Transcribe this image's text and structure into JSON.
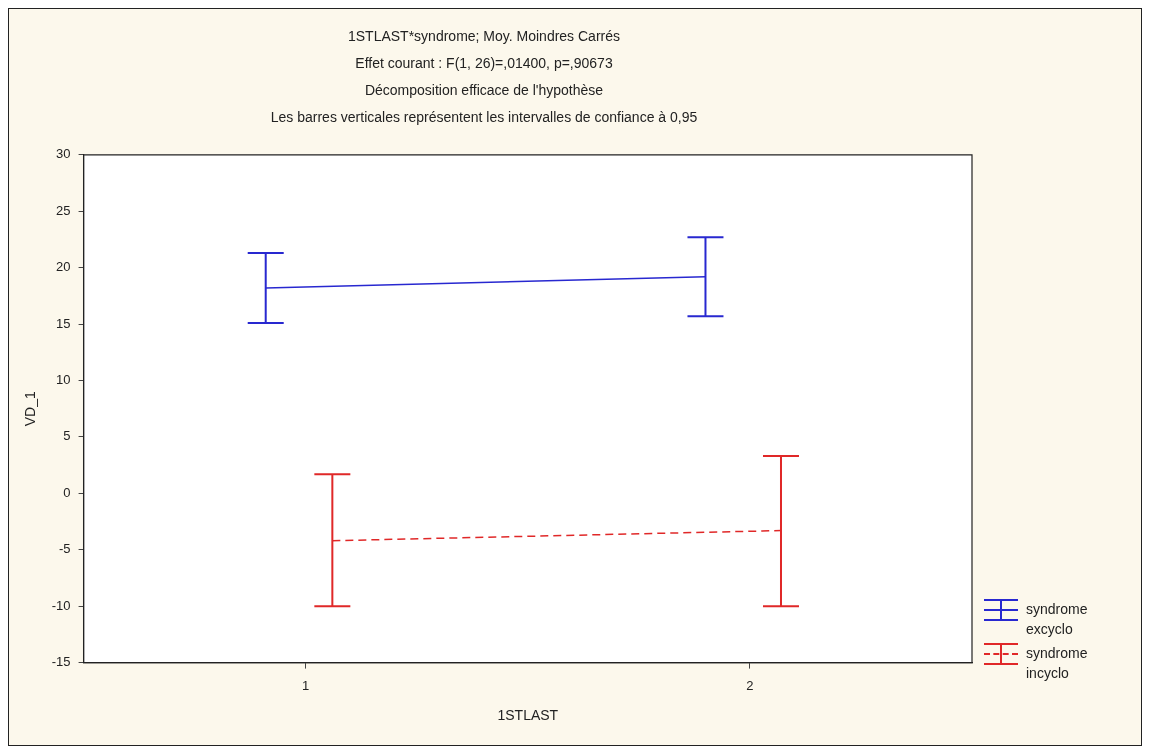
{
  "chart_data": {
    "type": "line",
    "title": "1STLAST*syndrome; Moy. Moindres Carrés",
    "subtitle": "Effet courant : F(1, 26)=,01400, p=,90673",
    "annotations": [
      "Décomposition efficace de l'hypothèse",
      "Les barres verticales représentent les intervalles de confiance à 0,95"
    ],
    "xlabel": "1STLAST",
    "ylabel": "VD_1",
    "xlim": [
      0.5,
      2.5
    ],
    "xticks": [
      1,
      2
    ],
    "ylim": [
      -15,
      30
    ],
    "yticks": [
      -15,
      -10,
      -5,
      0,
      5,
      10,
      15,
      20,
      25,
      30
    ],
    "grid": false,
    "legend": "right",
    "marker": "none",
    "series": [
      {
        "name": "syndrome excyclo",
        "color": "#2828d0",
        "line_style": "solid",
        "x": [
          0.91,
          1.9
        ],
        "values": [
          18.2,
          19.2
        ],
        "errors": [
          [
            15.1,
            21.3
          ],
          [
            15.7,
            22.7
          ]
        ]
      },
      {
        "name": "syndrome incyclo",
        "color": "#e02828",
        "line_style": "dashed",
        "x": [
          1.06,
          2.07
        ],
        "values": [
          -4.2,
          -3.3
        ],
        "errors": [
          [
            -10,
            1.7
          ],
          [
            -10,
            3.3
          ]
        ]
      }
    ]
  }
}
